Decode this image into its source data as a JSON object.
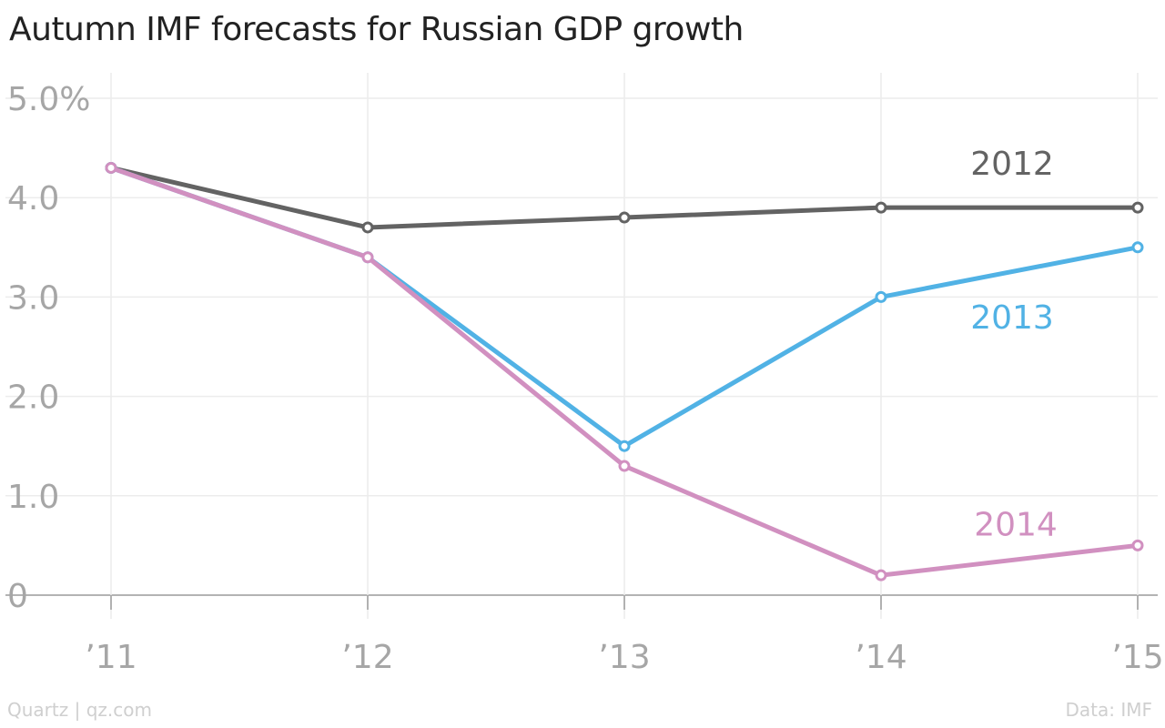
{
  "chart_data": {
    "type": "line",
    "title": "Autumn IMF forecasts for Russian GDP growth",
    "x": [
      "’11",
      "’12",
      "’13",
      "’14",
      "’15"
    ],
    "ylim": [
      0,
      5
    ],
    "yticks": [
      0,
      1,
      2,
      3,
      4,
      5
    ],
    "ytick_labels": [
      "0",
      "1.0",
      "2.0",
      "3.0",
      "4.0",
      "5.0%"
    ],
    "grid": true,
    "series": [
      {
        "name": "2012",
        "color": "#636363",
        "values": [
          4.3,
          3.7,
          3.8,
          3.9,
          3.9
        ]
      },
      {
        "name": "2013",
        "color": "#51b2e5",
        "values": [
          4.3,
          3.4,
          1.5,
          3.0,
          3.5
        ]
      },
      {
        "name": "2014",
        "color": "#d190c0",
        "values": [
          4.3,
          3.4,
          1.3,
          0.2,
          0.5
        ]
      }
    ]
  },
  "footer": {
    "credit": "Quartz | qz.com",
    "source": "Data: IMF"
  }
}
